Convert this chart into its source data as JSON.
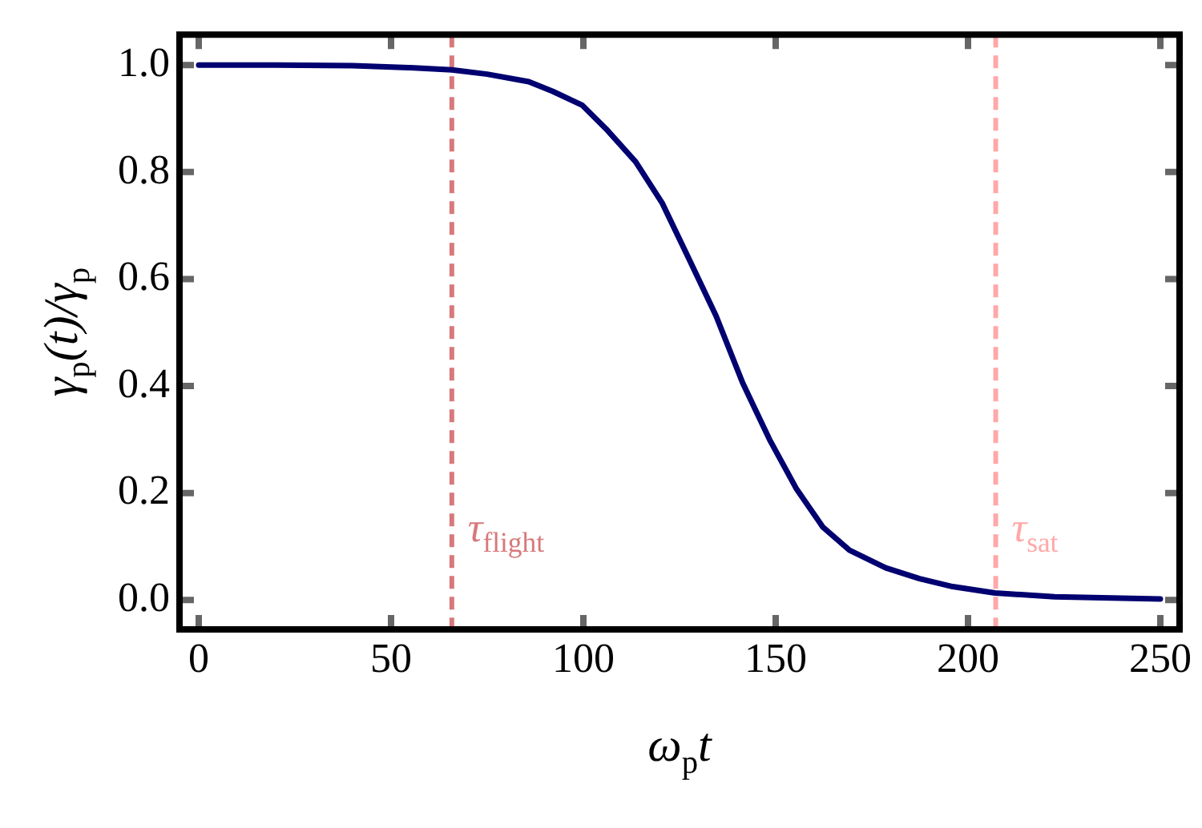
{
  "chart_data": {
    "type": "line",
    "xlabel": "ω$_{p}$t",
    "ylabel": "γ$_{p}$(t)/γ$_{p}$",
    "xlim": [
      -5,
      255
    ],
    "ylim": [
      -0.055,
      1.057
    ],
    "xticks": [
      0,
      50,
      100,
      150,
      200,
      250
    ],
    "yticks": [
      {
        "value": 0,
        "label": "0.0"
      },
      {
        "value": 0.2,
        "label": "0.2"
      },
      {
        "value": 0.4,
        "label": "0.4"
      },
      {
        "value": 0.6,
        "label": "0.6"
      },
      {
        "value": 0.8,
        "label": "0.8"
      },
      {
        "value": 1,
        "label": "1.0"
      }
    ],
    "grid": false,
    "legend": false,
    "marker": "none",
    "line_style": "solid",
    "series": [
      {
        "color": "#000070",
        "x": [
          0,
          20,
          40,
          55,
          65.8,
          75,
          85.8,
          92,
          99.7,
          106,
          113.6,
          120.5,
          127.5,
          134.5,
          141.4,
          148.4,
          155.3,
          162.3,
          169.2,
          178.6,
          187.4,
          196,
          207,
          222.5,
          250
        ],
        "values": [
          1,
          1,
          0.999,
          0.995,
          0.991,
          0.983,
          0.969,
          0.951,
          0.925,
          0.88,
          0.819,
          0.742,
          0.637,
          0.531,
          0.406,
          0.3,
          0.209,
          0.136,
          0.093,
          0.06,
          0.04,
          0.025,
          0.013,
          0.006,
          0.002
        ]
      }
    ],
    "ref_lines": [
      {
        "axis": "x",
        "value": 65.8,
        "label": "τ$_{flight}$",
        "color": "#d7797c",
        "line_style": "dashed"
      },
      {
        "axis": "x",
        "value": 207.2,
        "label": "τ$_{sat}$",
        "color": "#ffa8a8",
        "line_style": "dashed"
      }
    ]
  }
}
